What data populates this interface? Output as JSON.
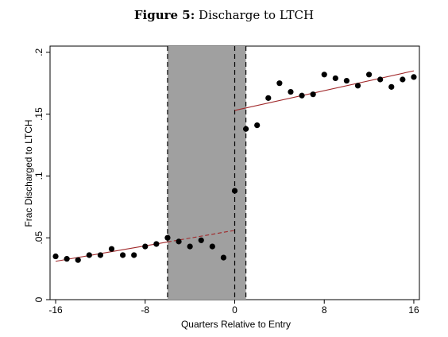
{
  "figure": {
    "label": "Figure 5:",
    "caption": "Discharge to LTCH"
  },
  "chart_data": {
    "type": "scatter",
    "title": "Figure 5: Discharge to LTCH",
    "xlabel": "Quarters Relative to Entry",
    "ylabel": "Frac Discharged to LTCH",
    "xlim": [
      -16.5,
      16.5
    ],
    "ylim": [
      0,
      0.205
    ],
    "x_ticks": [
      -16,
      -8,
      0,
      8,
      16
    ],
    "x_tick_labels": [
      "-16",
      "-8",
      "0",
      "8",
      "16"
    ],
    "y_ticks": [
      0,
      0.05,
      0.1,
      0.15,
      0.2
    ],
    "y_tick_labels": [
      "0",
      ".05",
      ".1",
      ".15",
      ".2"
    ],
    "grid": false,
    "colors": {
      "points": "#000000",
      "fit_line": "#a0282a",
      "shaded_region": "#a0a0a0",
      "dashed_lines": "#000000"
    },
    "points": {
      "x": [
        -16,
        -15,
        -14,
        -13,
        -12,
        -11,
        -10,
        -9,
        -8,
        -7,
        -6,
        -5,
        -4,
        -3,
        -2,
        -1,
        0,
        1,
        2,
        3,
        4,
        5,
        6,
        7,
        8,
        9,
        10,
        11,
        12,
        13,
        14,
        15,
        16
      ],
      "y": [
        0.035,
        0.033,
        0.032,
        0.036,
        0.036,
        0.041,
        0.036,
        0.036,
        0.043,
        0.045,
        0.05,
        0.047,
        0.043,
        0.048,
        0.043,
        0.034,
        0.088,
        0.138,
        0.141,
        0.163,
        0.175,
        0.168,
        0.165,
        0.166,
        0.182,
        0.179,
        0.177,
        0.173,
        0.182,
        0.178,
        0.172,
        0.178,
        0.18
      ]
    },
    "fit_pre": {
      "x": [
        -16,
        0
      ],
      "y": [
        0.031,
        0.056
      ]
    },
    "fit_post": {
      "x": [
        0,
        16
      ],
      "y": [
        0.153,
        0.185
      ]
    },
    "shaded_region": {
      "x": [
        -6,
        1
      ]
    },
    "dashed_vlines": [
      -6,
      0,
      1
    ]
  }
}
